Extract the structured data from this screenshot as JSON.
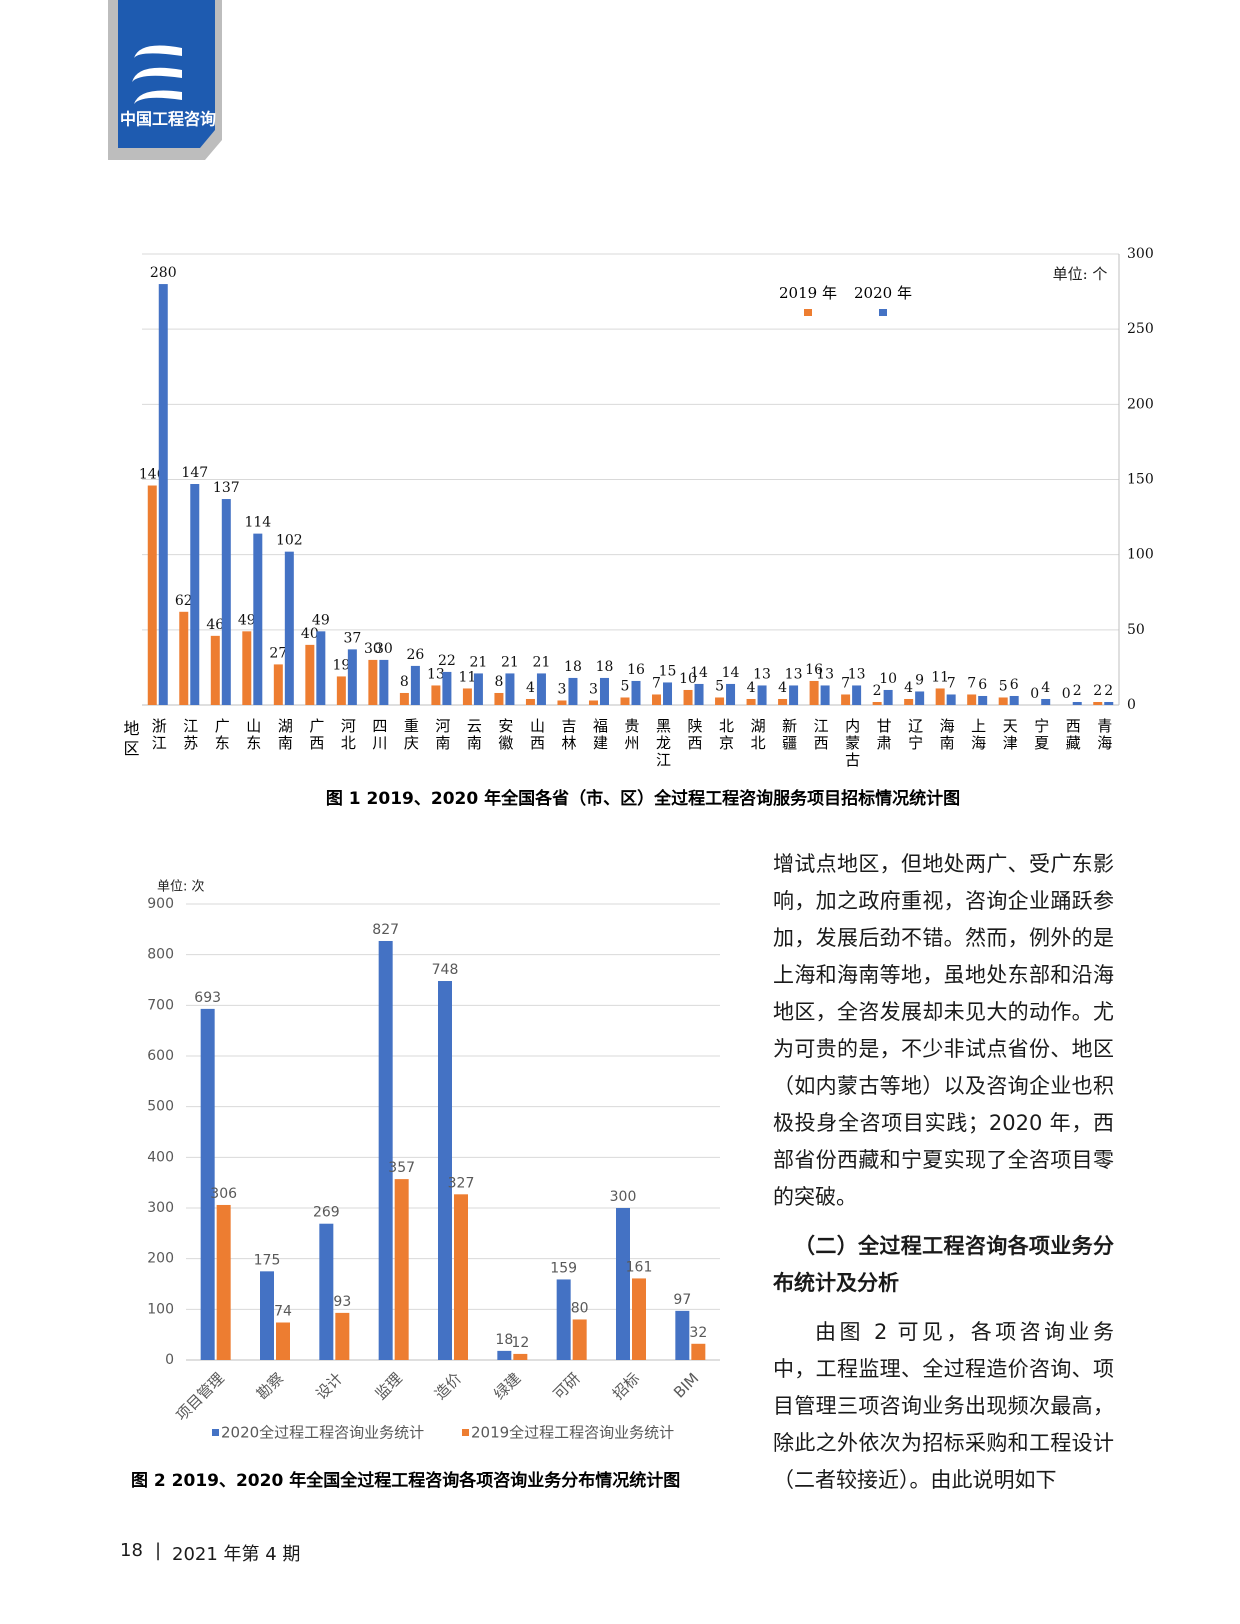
{
  "header": {
    "logo_text": "中国工程咨询"
  },
  "chart_data": [
    {
      "type": "bar",
      "unit": "单位: 个",
      "x_label": "地区",
      "caption": "图 1  2019、2020 年全国各省（市、区）全过程工程咨询服务项目招标情况统计图",
      "categories": [
        "浙江",
        "江苏",
        "广东",
        "山东",
        "湖南",
        "广西",
        "河北",
        "四川",
        "重庆",
        "河南",
        "云南",
        "安徽",
        "山西",
        "吉林",
        "福建",
        "贵州",
        "黑龙江",
        "陕西",
        "北京",
        "湖北",
        "新疆",
        "江西",
        "内蒙古",
        "甘肃",
        "辽宁",
        "海南",
        "上海",
        "天津",
        "宁夏",
        "西藏",
        "青海"
      ],
      "series": [
        {
          "name": "2019 年",
          "color": "#ed7d31",
          "values": [
            146,
            62,
            46,
            49,
            27,
            40,
            19,
            30,
            8,
            13,
            11,
            8,
            4,
            3,
            3,
            5,
            7,
            10,
            5,
            4,
            4,
            16,
            7,
            2,
            4,
            11,
            7,
            5,
            0,
            0,
            2
          ]
        },
        {
          "name": "2020 年",
          "color": "#4472c4",
          "values": [
            280,
            147,
            137,
            114,
            102,
            49,
            37,
            30,
            26,
            22,
            21,
            21,
            21,
            18,
            18,
            16,
            15,
            14,
            14,
            13,
            13,
            13,
            13,
            10,
            9,
            7,
            6,
            6,
            4,
            2,
            2
          ]
        }
      ],
      "ylim": [
        0,
        300
      ],
      "yticks": [
        0,
        50,
        100,
        150,
        200,
        250,
        300
      ],
      "grid": true,
      "y_axis_side": "right",
      "legend": "top"
    },
    {
      "type": "bar",
      "unit": "单位: 次",
      "caption": "图 2  2019、2020 年全国全过程工程咨询各项咨询业务分布情况统计图",
      "categories": [
        "项目管理",
        "勘察",
        "设计",
        "监理",
        "造价",
        "绿建",
        "可研",
        "招标",
        "BIM"
      ],
      "series": [
        {
          "name": "2020全过程工程咨询业务统计",
          "color": "#4472c4",
          "values": [
            693,
            175,
            269,
            827,
            748,
            18,
            159,
            300,
            97
          ]
        },
        {
          "name": "2019全过程工程咨询业务统计",
          "color": "#ed7d31",
          "values": [
            306,
            74,
            93,
            357,
            327,
            12,
            80,
            161,
            32
          ]
        }
      ],
      "ylim": [
        0,
        900
      ],
      "yticks": [
        0,
        100,
        200,
        300,
        400,
        500,
        600,
        700,
        800,
        900
      ],
      "grid": true,
      "y_axis_side": "left",
      "legend": "bottom"
    }
  ],
  "text": {
    "paragraph_1": "增试点地区，但地处两广、受广东影响，加之政府重视，咨询企业踊跃参加，发展后劲不错。然而，例外的是上海和海南等地，虽地处东部和沿海地区，全咨发展却未见大的动作。尤为可贵的是，不少非试点省份、地区（如内蒙古等地）以及咨询企业也积极投身全咨项目实践；2020 年，西部省份西藏和宁夏实现了全咨项目零的突破。",
    "heading": "（二）全过程工程咨询各项业务分布统计及分析",
    "paragraph_2": "由图 2 可见，各项咨询业务中，工程监理、全过程造价咨询、项目管理三项咨询业务出现频次最高，除此之外依次为招标采购和工程设计（二者较接近）。由此说明如下"
  },
  "footer": {
    "page": "18",
    "issue": "2021 年第 4 期"
  }
}
